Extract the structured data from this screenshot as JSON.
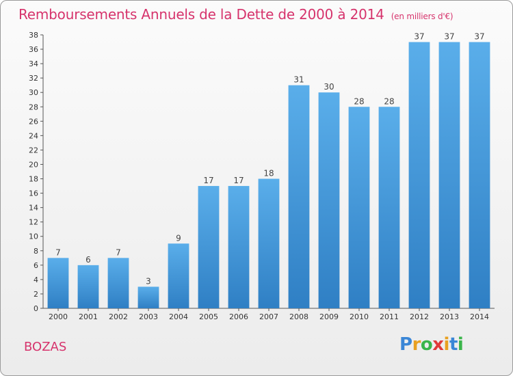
{
  "header": {
    "title": "Remboursements Annuels de la Dette de 2000 à 2014",
    "unit": "(en milliers d'€)"
  },
  "footer": {
    "town": "BOZAS",
    "brand": [
      "P",
      "r",
      "o",
      "x",
      "i",
      "t",
      "i"
    ]
  },
  "chart_data": {
    "type": "bar",
    "title": "Remboursements Annuels de la Dette de 2000 à 2014",
    "subtitle": "(en milliers d'€)",
    "categories": [
      "2000",
      "2001",
      "2002",
      "2003",
      "2004",
      "2005",
      "2006",
      "2007",
      "2008",
      "2009",
      "2010",
      "2011",
      "2012",
      "2013",
      "2014"
    ],
    "values": [
      7,
      6,
      7,
      3,
      9,
      17,
      17,
      18,
      31,
      30,
      28,
      28,
      37,
      37,
      37
    ],
    "ylim": [
      0,
      38
    ],
    "yticks": [
      0,
      2,
      4,
      6,
      8,
      10,
      12,
      14,
      16,
      18,
      20,
      22,
      24,
      26,
      28,
      30,
      32,
      34,
      36,
      38
    ],
    "grid": false,
    "legend": "none",
    "bar_color": "#4b9fe0"
  }
}
